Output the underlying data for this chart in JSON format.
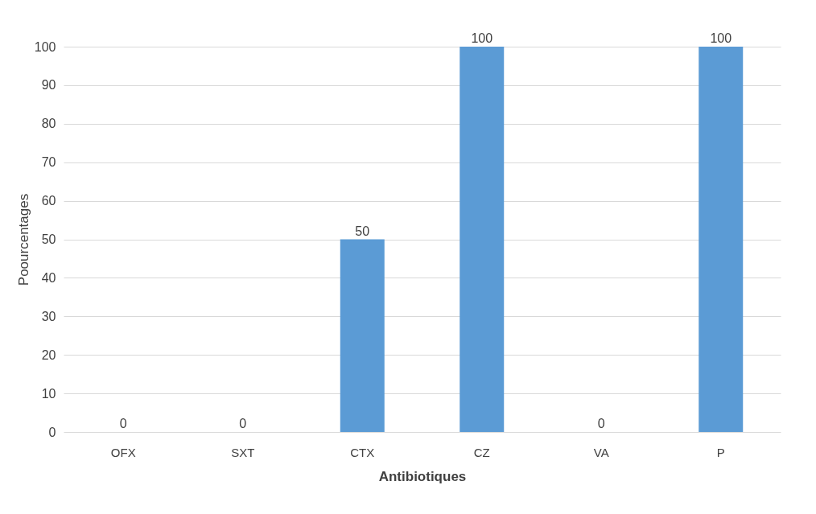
{
  "chart_data": {
    "type": "bar",
    "categories": [
      "OFX",
      "SXT",
      "CTX",
      "CZ",
      "VA",
      "P"
    ],
    "values": [
      0,
      0,
      50,
      100,
      0,
      100
    ],
    "color": "#5b9bd5",
    "xlabel": "Antibiotiques",
    "ylabel": "Poourcentages",
    "ylim": [
      0,
      100
    ],
    "yticks": [
      0,
      10,
      20,
      30,
      40,
      50,
      60,
      70,
      80,
      90,
      100
    ],
    "grid": "y",
    "data_labels": true
  }
}
